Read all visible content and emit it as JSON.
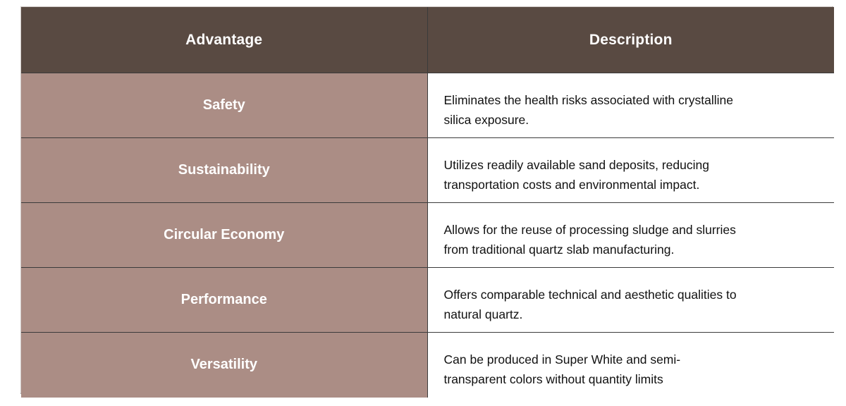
{
  "table": {
    "header": {
      "advantage": "Advantage",
      "description": "Description"
    },
    "rows": [
      {
        "advantage": "Safety",
        "description": "Eliminates the health risks associated with crystalline\nsilica exposure."
      },
      {
        "advantage": "Sustainability",
        "description": "Utilizes readily available sand deposits, reducing\ntransportation costs and environmental impact."
      },
      {
        "advantage": "Circular Economy",
        "description": "Allows for the reuse of processing sludge and slurries\nfrom traditional quartz slab manufacturing."
      },
      {
        "advantage": "Performance",
        "description": "Offers comparable technical and aesthetic qualities to\nnatural quartz."
      },
      {
        "advantage": "Versatility",
        "description": "Can be produced in Super White and semi-\ntransparent colors without quantity limits"
      }
    ],
    "colors": {
      "header_bg": "#594a42",
      "header_text": "#ffffff",
      "advantage_bg": "#ab8d85",
      "advantage_text": "#ffffff",
      "description_bg": "#ffffff",
      "description_text": "#111111",
      "grid_line": "#3b3b3b",
      "outer_frame_light": "#cfc9c6",
      "outer_frame_dark": "#8e8e8e"
    }
  }
}
